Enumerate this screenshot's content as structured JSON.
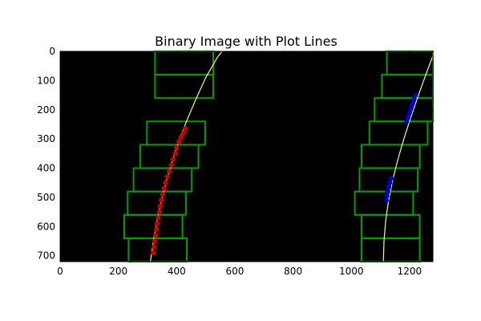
{
  "chart_data": {
    "type": "scatter",
    "title": "Binary Image with Plot Lines",
    "xlabel": "",
    "ylabel": "",
    "xlim": [
      0,
      1280
    ],
    "ylim": [
      720,
      0
    ],
    "x_ticks": [
      0,
      200,
      400,
      600,
      800,
      1000,
      1200
    ],
    "y_ticks": [
      0,
      100,
      200,
      300,
      400,
      500,
      600,
      700
    ],
    "y_axis_inverted": true,
    "grid": false,
    "legend": "none",
    "colors": {
      "background": "#000000",
      "windows": "#00a000",
      "fit_lines": "#ffff66",
      "left_pixels": "#cc0000",
      "right_pixels": "#0000cc"
    },
    "windows": [
      {
        "lane": "left",
        "x_min": 326,
        "x_max": 526,
        "y_min": 0,
        "y_max": 80
      },
      {
        "lane": "left",
        "x_min": 326,
        "x_max": 526,
        "y_min": 80,
        "y_max": 160
      },
      {
        "lane": "left",
        "x_min": 298,
        "x_max": 498,
        "y_min": 240,
        "y_max": 320
      },
      {
        "lane": "left",
        "x_min": 275,
        "x_max": 475,
        "y_min": 320,
        "y_max": 400
      },
      {
        "lane": "left",
        "x_min": 252,
        "x_max": 452,
        "y_min": 400,
        "y_max": 480
      },
      {
        "lane": "left",
        "x_min": 232,
        "x_max": 432,
        "y_min": 480,
        "y_max": 560
      },
      {
        "lane": "left",
        "x_min": 220,
        "x_max": 420,
        "y_min": 560,
        "y_max": 640
      },
      {
        "lane": "left",
        "x_min": 235,
        "x_max": 435,
        "y_min": 640,
        "y_max": 720
      },
      {
        "lane": "right",
        "x_min": 1122,
        "x_max": 1322,
        "y_min": 0,
        "y_max": 80
      },
      {
        "lane": "right",
        "x_min": 1105,
        "x_max": 1305,
        "y_min": 80,
        "y_max": 160
      },
      {
        "lane": "right",
        "x_min": 1080,
        "x_max": 1280,
        "y_min": 160,
        "y_max": 240
      },
      {
        "lane": "right",
        "x_min": 1062,
        "x_max": 1262,
        "y_min": 240,
        "y_max": 320
      },
      {
        "lane": "right",
        "x_min": 1035,
        "x_max": 1235,
        "y_min": 320,
        "y_max": 400
      },
      {
        "lane": "right",
        "x_min": 1028,
        "x_max": 1228,
        "y_min": 400,
        "y_max": 480
      },
      {
        "lane": "right",
        "x_min": 1012,
        "x_max": 1212,
        "y_min": 480,
        "y_max": 560
      },
      {
        "lane": "right",
        "x_min": 1035,
        "x_max": 1235,
        "y_min": 560,
        "y_max": 640
      },
      {
        "lane": "right",
        "x_min": 1035,
        "x_max": 1235,
        "y_min": 640,
        "y_max": 720
      }
    ],
    "series": [
      {
        "kind": "fit",
        "lane": "left",
        "points": [
          [
            310,
            720
          ],
          [
            320,
            650
          ],
          [
            333,
            580
          ],
          [
            348,
            510
          ],
          [
            366,
            440
          ],
          [
            387,
            370
          ],
          [
            410,
            300
          ],
          [
            438,
            230
          ],
          [
            468,
            160
          ],
          [
            500,
            90
          ],
          [
            540,
            20
          ],
          [
            556,
            0
          ]
        ]
      },
      {
        "kind": "fit",
        "lane": "right",
        "points": [
          [
            1110,
            720
          ],
          [
            1112,
            650
          ],
          [
            1118,
            580
          ],
          [
            1128,
            510
          ],
          [
            1142,
            440
          ],
          [
            1160,
            370
          ],
          [
            1180,
            300
          ],
          [
            1203,
            230
          ],
          [
            1227,
            160
          ],
          [
            1252,
            90
          ],
          [
            1278,
            20
          ],
          [
            1285,
            0
          ]
        ]
      },
      {
        "kind": "pixels",
        "lane": "left",
        "points": [
          [
            320,
            690
          ],
          [
            323,
            670
          ],
          [
            325,
            650
          ],
          [
            328,
            630
          ],
          [
            331,
            610
          ],
          [
            334,
            590
          ],
          [
            337,
            570
          ],
          [
            341,
            550
          ],
          [
            344,
            530
          ],
          [
            348,
            510
          ],
          [
            352,
            490
          ],
          [
            357,
            470
          ],
          [
            362,
            450
          ],
          [
            368,
            430
          ],
          [
            375,
            410
          ],
          [
            382,
            390
          ],
          [
            388,
            370
          ],
          [
            395,
            350
          ],
          [
            400,
            330
          ],
          [
            408,
            310
          ],
          [
            415,
            295
          ],
          [
            424,
            280
          ],
          [
            430,
            265
          ]
        ]
      },
      {
        "kind": "pixels",
        "lane": "right",
        "points": [
          [
            1120,
            510
          ],
          [
            1122,
            495
          ],
          [
            1125,
            480
          ],
          [
            1128,
            465
          ],
          [
            1132,
            450
          ],
          [
            1137,
            435
          ],
          [
            1190,
            240
          ],
          [
            1195,
            225
          ],
          [
            1200,
            210
          ],
          [
            1205,
            195
          ],
          [
            1210,
            180
          ],
          [
            1215,
            165
          ],
          [
            1220,
            150
          ]
        ]
      }
    ]
  }
}
